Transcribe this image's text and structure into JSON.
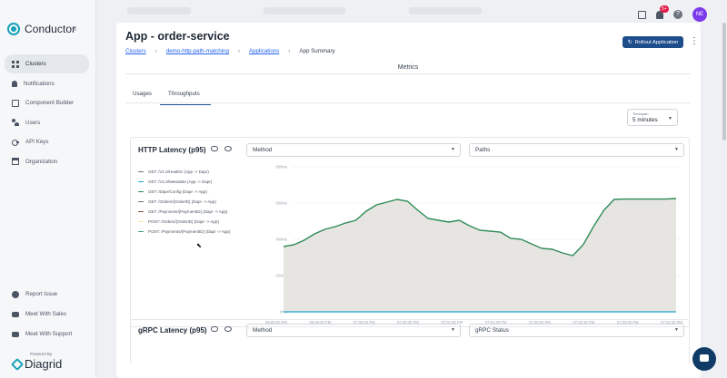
{
  "sidebar": {
    "brand": "Conductor",
    "collapse_icon": "«",
    "items": [
      {
        "label": "Clusters",
        "icon": "grid-icon",
        "active": true
      },
      {
        "label": "Notifications",
        "icon": "bell-icon"
      },
      {
        "label": "Component Builder",
        "icon": "builder-icon"
      },
      {
        "label": "Users",
        "icon": "users-icon"
      },
      {
        "label": "API Keys",
        "icon": "key-icon"
      },
      {
        "label": "Organization",
        "icon": "org-icon"
      }
    ],
    "bottom_items": [
      {
        "label": "Report Issue",
        "icon": "github-icon"
      },
      {
        "label": "Meet With Sales",
        "icon": "chat-icon"
      },
      {
        "label": "Meet With Support",
        "icon": "chat-icon"
      }
    ],
    "powered_by": "Powered By",
    "footer_brand": "Diagrid"
  },
  "header": {
    "notification_count": "5+",
    "help": "?",
    "avatar_initials": "NE"
  },
  "page": {
    "title": "App - order-service",
    "breadcrumb": [
      "Clusters",
      "demo-http-path-matching",
      "Applications",
      "App Summary"
    ],
    "rollout_button": "Rollout Application",
    "section": "Metrics",
    "tabs": [
      "Usages",
      "Throughputs"
    ],
    "active_tab": "Throughputs",
    "timespan_label": "Timespan",
    "timespan_value": "5 minutes"
  },
  "http_card": {
    "title": "HTTP Latency (p95)",
    "method_placeholder": "Method",
    "paths_placeholder": "Paths",
    "legend": [
      {
        "label": "GET: /V1.0/Healthz (App -> Dapr)",
        "color": "#6b7280"
      },
      {
        "label": "GET: /V1.0/Metadata (App -> Dapr)",
        "color": "#1ea7c6"
      },
      {
        "label": "GET: /Dapr/Config (Dapr -> App)",
        "color": "#2e8b57"
      },
      {
        "label": "GET: /Orders/{OrderID} (Dapr -> App)",
        "color": "#6b7280"
      },
      {
        "label": "GET: /Payments/{PaymentID} (Dapr -> App)",
        "color": "#8b4b4b"
      },
      {
        "label": "POST: /Orders/{OrderID} (Dapr -> App)",
        "color": "#f2e6b0"
      },
      {
        "label": "POST: /Payments/{PaymentID} (Dapr -> App)",
        "color": "#3ca08c"
      }
    ]
  },
  "grpc_card": {
    "title": "gRPC Latency (p95)",
    "method_placeholder": "Method",
    "status_placeholder": "gRPC Status"
  },
  "chart_data": {
    "type": "area",
    "title": "HTTP Latency (p95)",
    "xlabel": "",
    "ylabel": "",
    "y_ticks": [
      "800ms",
      "600ms",
      "400ms",
      "200ms",
      "0ms"
    ],
    "ylim": [
      0,
      800
    ],
    "x_ticks": [
      "06:59:00 PM",
      "06:59:30 PM",
      "07:00:00 PM",
      "07:00:30 PM",
      "07:01:00 PM",
      "07:01:30 PM",
      "07:02:00 PM",
      "07:02:30 PM",
      "07:03:00 PM",
      "07:03:30 PM"
    ],
    "grid": true,
    "legend_position": "left",
    "series": [
      {
        "name": "GET: /Dapr/Config (Dapr -> App)",
        "color": "#2e8b57",
        "values": [
          360,
          370,
          395,
          430,
          455,
          470,
          490,
          505,
          555,
          590,
          605,
          620,
          610,
          560,
          515,
          505,
          495,
          505,
          475,
          450,
          445,
          440,
          405,
          400,
          375,
          350,
          345,
          325,
          310,
          370,
          470,
          560,
          620,
          622,
          622,
          622,
          622,
          622,
          625
        ]
      },
      {
        "name": "GET: /V1.0/Metadata (App -> Dapr)",
        "color": "#1ea7c6",
        "values": [
          0,
          0,
          0,
          0,
          0,
          0,
          0,
          0,
          0,
          0,
          0,
          0,
          0,
          0,
          0,
          0,
          0,
          0,
          0,
          0,
          0,
          0,
          0,
          0,
          0,
          0,
          0,
          0,
          0,
          0,
          0,
          0,
          0,
          0,
          0,
          0,
          0,
          0,
          0
        ]
      }
    ]
  }
}
